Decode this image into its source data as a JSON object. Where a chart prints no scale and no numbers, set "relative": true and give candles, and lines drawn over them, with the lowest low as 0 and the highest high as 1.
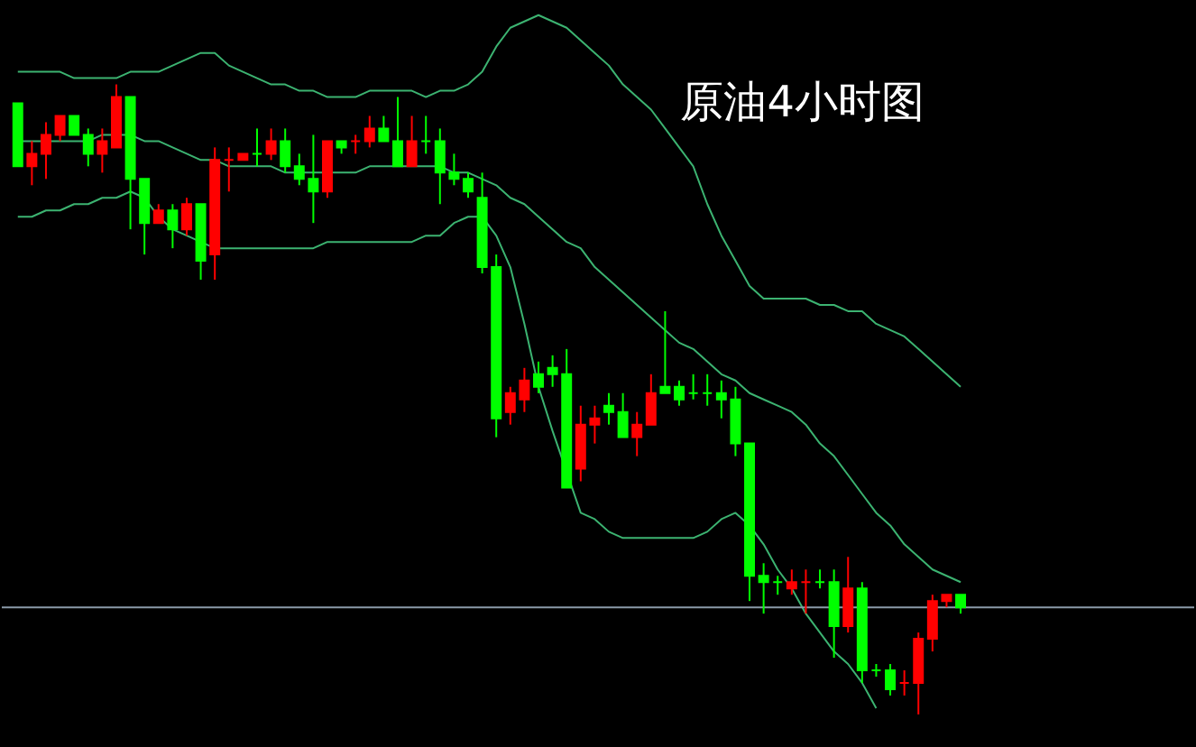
{
  "chart_data": {
    "type": "candlestick",
    "title": "原油4小时图",
    "relative": true,
    "categories": [
      null,
      null,
      null,
      null,
      null,
      null,
      null,
      null,
      null,
      null,
      null,
      null,
      null,
      null,
      null,
      null,
      null,
      null,
      null,
      null,
      null,
      null,
      null,
      null,
      null,
      null,
      null,
      null,
      null,
      null,
      null,
      null,
      null,
      null,
      null,
      null,
      null,
      null,
      null,
      null,
      null,
      null,
      null,
      null,
      null,
      null,
      null,
      null,
      null,
      null,
      null,
      null,
      null,
      null,
      null,
      null,
      null,
      null,
      null,
      null,
      null,
      null,
      null,
      null,
      null,
      null,
      null,
      null
    ],
    "ohlc": [
      [
        0.97,
        0.97,
        0.87,
        0.87
      ],
      [
        0.87,
        0.91,
        0.84,
        0.89
      ],
      [
        0.89,
        0.94,
        0.85,
        0.92
      ],
      [
        0.92,
        0.95,
        0.91,
        0.95
      ],
      [
        0.95,
        0.95,
        0.92,
        0.92
      ],
      [
        0.92,
        0.93,
        0.87,
        0.89
      ],
      [
        0.89,
        0.93,
        0.86,
        0.91
      ],
      [
        0.9,
        1.0,
        0.9,
        0.98
      ],
      [
        0.98,
        0.98,
        0.77,
        0.85
      ],
      [
        0.85,
        0.85,
        0.73,
        0.78
      ],
      [
        0.78,
        0.81,
        0.78,
        0.8
      ],
      [
        0.8,
        0.81,
        0.74,
        0.77
      ],
      [
        0.77,
        0.82,
        0.76,
        0.81
      ],
      [
        0.81,
        0.81,
        0.69,
        0.72
      ],
      [
        0.73,
        0.9,
        0.69,
        0.88
      ],
      [
        0.88,
        0.9,
        0.83,
        0.88
      ],
      [
        0.88,
        0.89,
        0.88,
        0.89
      ],
      [
        0.89,
        0.93,
        0.87,
        0.89
      ],
      [
        0.89,
        0.93,
        0.88,
        0.91
      ],
      [
        0.91,
        0.93,
        0.86,
        0.87
      ],
      [
        0.87,
        0.89,
        0.84,
        0.85
      ],
      [
        0.85,
        0.92,
        0.78,
        0.83
      ],
      [
        0.83,
        0.91,
        0.82,
        0.91
      ],
      [
        0.91,
        0.91,
        0.89,
        0.9
      ],
      [
        0.91,
        0.92,
        0.89,
        0.91
      ],
      [
        0.91,
        0.95,
        0.9,
        0.93
      ],
      [
        0.93,
        0.95,
        0.91,
        0.91
      ],
      [
        0.91,
        0.98,
        0.87,
        0.87
      ],
      [
        0.87,
        0.95,
        0.87,
        0.91
      ],
      [
        0.91,
        0.95,
        0.89,
        0.91
      ],
      [
        0.91,
        0.93,
        0.81,
        0.86
      ],
      [
        0.86,
        0.89,
        0.84,
        0.85
      ],
      [
        0.85,
        0.86,
        0.82,
        0.83
      ],
      [
        0.82,
        0.86,
        0.7,
        0.71
      ],
      [
        0.71,
        0.73,
        0.44,
        0.47
      ],
      [
        0.48,
        0.52,
        0.46,
        0.51
      ],
      [
        0.5,
        0.55,
        0.48,
        0.53
      ],
      [
        0.54,
        0.56,
        0.51,
        0.52
      ],
      [
        0.55,
        0.57,
        0.52,
        0.54
      ],
      [
        0.54,
        0.58,
        0.36,
        0.36
      ],
      [
        0.39,
        0.49,
        0.37,
        0.46
      ],
      [
        0.46,
        0.49,
        0.43,
        0.47
      ],
      [
        0.49,
        0.51,
        0.46,
        0.48
      ],
      [
        0.48,
        0.51,
        0.44,
        0.44
      ],
      [
        0.44,
        0.48,
        0.41,
        0.46
      ],
      [
        0.46,
        0.54,
        0.46,
        0.51
      ],
      [
        0.52,
        0.64,
        0.51,
        0.51
      ],
      [
        0.52,
        0.53,
        0.49,
        0.5
      ],
      [
        0.51,
        0.54,
        0.5,
        0.51
      ],
      [
        0.51,
        0.54,
        0.49,
        0.51
      ],
      [
        0.51,
        0.53,
        0.47,
        0.5
      ],
      [
        0.5,
        0.52,
        0.41,
        0.43
      ],
      [
        0.43,
        0.43,
        0.18,
        0.22
      ],
      [
        0.22,
        0.24,
        0.16,
        0.21
      ],
      [
        0.21,
        0.22,
        0.19,
        0.21
      ],
      [
        0.2,
        0.23,
        0.19,
        0.21
      ],
      [
        0.21,
        0.23,
        0.16,
        0.21
      ],
      [
        0.21,
        0.23,
        0.2,
        0.21
      ],
      [
        0.21,
        0.23,
        0.09,
        0.14
      ],
      [
        0.14,
        0.25,
        0.13,
        0.2
      ],
      [
        0.2,
        0.21,
        0.05,
        0.07
      ],
      [
        0.07,
        0.08,
        0.06,
        0.07
      ],
      [
        0.07,
        0.08,
        0.03,
        0.04
      ],
      [
        0.05,
        0.07,
        0.03,
        0.05
      ],
      [
        0.05,
        0.13,
        0.0,
        0.12
      ],
      [
        0.12,
        0.19,
        0.1,
        0.18
      ],
      [
        0.18,
        0.19,
        0.17,
        0.19
      ],
      [
        0.19,
        0.19,
        0.16,
        0.17
      ]
    ],
    "colors": [
      "#00ff00",
      "#ff0000",
      "#ff0000",
      "#ff0000",
      "#00ff00",
      "#00ff00",
      "#ff0000",
      "#ff0000",
      "#00ff00",
      "#00ff00",
      "#ff0000",
      "#00ff00",
      "#ff0000",
      "#00ff00",
      "#ff0000",
      "#ff0000",
      "#ff0000",
      "#00ff00",
      "#ff0000",
      "#00ff00",
      "#00ff00",
      "#00ff00",
      "#ff0000",
      "#00ff00",
      "#ff0000",
      "#ff0000",
      "#00ff00",
      "#00ff00",
      "#ff0000",
      "#00ff00",
      "#00ff00",
      "#00ff00",
      "#00ff00",
      "#00ff00",
      "#00ff00",
      "#ff0000",
      "#ff0000",
      "#00ff00",
      "#00ff00",
      "#00ff00",
      "#ff0000",
      "#ff0000",
      "#00ff00",
      "#00ff00",
      "#ff0000",
      "#ff0000",
      "#00ff00",
      "#00ff00",
      "#00ff00",
      "#00ff00",
      "#00ff00",
      "#00ff00",
      "#00ff00",
      "#00ff00",
      "#00ff00",
      "#ff0000",
      "#ff0000",
      "#00ff00",
      "#00ff00",
      "#ff0000",
      "#00ff00",
      "#00ff00",
      "#00ff00",
      "#ff0000",
      "#ff0000",
      "#ff0000",
      "#ff0000",
      "#00ff00"
    ],
    "series": [
      {
        "type": "line",
        "color": "#3cb371",
        "values": [
          1.02,
          1.02,
          1.02,
          1.02,
          1.01,
          1.01,
          1.01,
          1.01,
          1.02,
          1.02,
          1.02,
          1.03,
          1.04,
          1.05,
          1.05,
          1.03,
          1.02,
          1.01,
          1.0,
          1.0,
          0.99,
          0.99,
          0.98,
          0.98,
          0.98,
          0.99,
          0.99,
          0.99,
          0.99,
          0.98,
          0.99,
          0.99,
          1.0,
          1.02,
          1.06,
          1.09,
          1.1,
          1.11,
          1.1,
          1.09,
          1.07,
          1.05,
          1.03,
          1.0,
          0.98,
          0.96,
          0.93,
          0.9,
          0.87,
          0.81,
          0.76,
          0.72,
          0.68,
          0.66,
          0.66,
          0.66,
          0.66,
          0.65,
          0.65,
          0.64,
          0.64,
          0.62,
          0.61,
          0.6,
          0.58,
          0.56,
          0.54,
          0.52
        ]
      },
      {
        "type": "line",
        "color": "#3cb371",
        "values": [
          0.91,
          0.91,
          0.91,
          0.91,
          0.91,
          0.91,
          0.92,
          0.92,
          0.92,
          0.91,
          0.91,
          0.9,
          0.89,
          0.88,
          0.88,
          0.87,
          0.87,
          0.87,
          0.87,
          0.86,
          0.86,
          0.86,
          0.86,
          0.86,
          0.86,
          0.87,
          0.87,
          0.87,
          0.87,
          0.87,
          0.87,
          0.86,
          0.86,
          0.85,
          0.84,
          0.82,
          0.81,
          0.79,
          0.77,
          0.75,
          0.74,
          0.71,
          0.69,
          0.67,
          0.65,
          0.63,
          0.61,
          0.59,
          0.58,
          0.56,
          0.54,
          0.53,
          0.51,
          0.5,
          0.49,
          0.48,
          0.46,
          0.43,
          0.41,
          0.38,
          0.35,
          0.32,
          0.3,
          0.27,
          0.25,
          0.23,
          0.22,
          0.21
        ]
      },
      {
        "type": "line",
        "color": "#3cb371",
        "values": [
          0.79,
          0.79,
          0.8,
          0.8,
          0.81,
          0.81,
          0.82,
          0.82,
          0.83,
          0.82,
          0.79,
          0.77,
          0.76,
          0.75,
          0.74,
          0.74,
          0.74,
          0.74,
          0.74,
          0.74,
          0.74,
          0.74,
          0.75,
          0.75,
          0.75,
          0.75,
          0.75,
          0.75,
          0.75,
          0.76,
          0.76,
          0.78,
          0.79,
          0.79,
          0.76,
          0.71,
          0.62,
          0.52,
          0.45,
          null,
          0.32,
          0.31,
          0.29,
          0.28,
          0.28,
          0.28,
          0.28,
          0.28,
          0.28,
          0.29,
          0.31,
          0.32,
          0.3,
          0.27,
          0.23,
          0.2,
          0.16,
          0.13,
          0.1,
          0.08,
          0.05,
          0.01,
          null,
          null,
          null,
          null,
          null,
          null
        ]
      }
    ],
    "ref_lines": [
      {
        "axis": "y",
        "value": 0.17,
        "color": "#8a9aa8"
      }
    ]
  }
}
